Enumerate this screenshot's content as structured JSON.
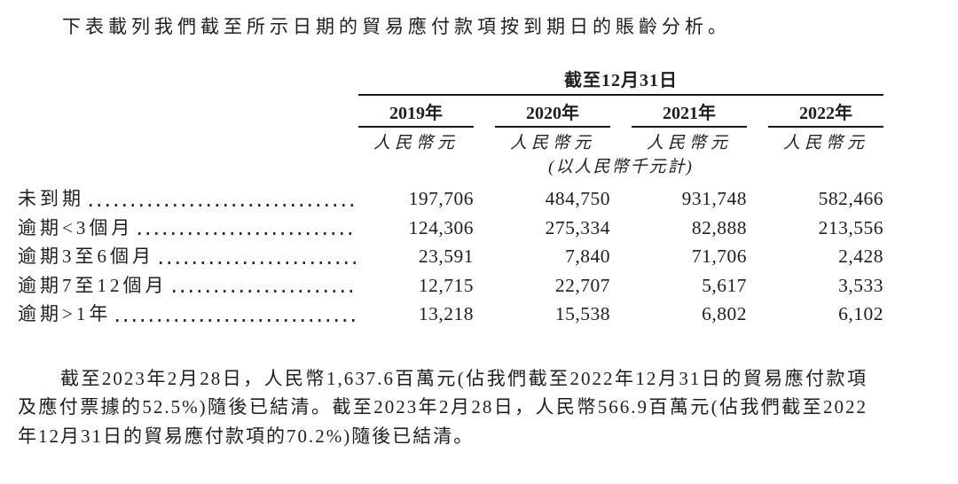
{
  "page": {
    "intro": "下表載列我們截至所示日期的貿易應付款項按到期日的賬齡分析。"
  },
  "table": {
    "span_header": "截至12月31日",
    "columns": [
      "2019年",
      "2020年",
      "2021年",
      "2022年"
    ],
    "unit_label": "人民幣元",
    "unit_note": "(以人民幣千元計)",
    "rows": [
      {
        "label": "未到期",
        "values": [
          "197,706",
          "484,750",
          "931,748",
          "582,466"
        ]
      },
      {
        "label": "逾期<3個月",
        "values": [
          "124,306",
          "275,334",
          "82,888",
          "213,556"
        ]
      },
      {
        "label": "逾期3至6個月",
        "values": [
          "23,591",
          "7,840",
          "71,706",
          "2,428"
        ]
      },
      {
        "label": "逾期7至12個月",
        "values": [
          "12,715",
          "22,707",
          "5,617",
          "3,533"
        ]
      },
      {
        "label": "逾期>1年",
        "values": [
          "13,218",
          "15,538",
          "6,802",
          "6,102"
        ]
      }
    ]
  },
  "footer": {
    "lines": [
      "截至2023年2月28日，人民幣1,637.6百萬元(佔我們截至2022年12月31日的貿易應付款項",
      "及應付票據的52.5%)隨後已結清。截至2023年2月28日，人民幣566.9百萬元(佔我們截至2022",
      "年12月31日的貿易應付款項的70.2%)隨後已結清。"
    ],
    "full_text": "截至2023年2月28日，人民幣1,637.6百萬元(佔我們截至2022年12月31日的貿易應付款項及應付票據的52.5%)隨後已結清。截至2023年2月28日，人民幣566.9百萬元(佔我們截至2022年12月31日的貿易應付款項的70.2%)隨後已結清。"
  },
  "colors": {
    "text": "#1e1e1e",
    "rule": "#1a1a1a",
    "background": "#ffffff"
  }
}
